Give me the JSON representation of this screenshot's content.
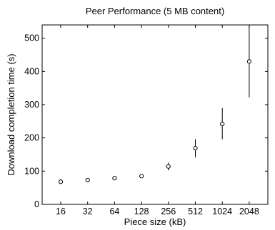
{
  "chart_data": {
    "type": "scatter",
    "title": "Peer Performance (5 MB content)",
    "xlabel": "Piece size (kB)",
    "ylabel": "Download completion time (s)",
    "x_scale": "log2",
    "x_categories": [
      "16",
      "32",
      "64",
      "128",
      "256",
      "512",
      "1024",
      "2048"
    ],
    "ylim": [
      0,
      540
    ],
    "yticks": [
      0,
      100,
      200,
      300,
      400,
      500
    ],
    "grid": false,
    "legend": "none",
    "marker": "open-circle",
    "color": "#000000",
    "series": [
      {
        "points": [
          {
            "x": "16",
            "y": 68,
            "err_low": 61,
            "err_high": 76
          },
          {
            "x": "32",
            "y": 73,
            "err_low": 69,
            "err_high": 78
          },
          {
            "x": "64",
            "y": 79,
            "err_low": 74,
            "err_high": 85
          },
          {
            "x": "128",
            "y": 85,
            "err_low": 80,
            "err_high": 90
          },
          {
            "x": "256",
            "y": 114,
            "err_low": 102,
            "err_high": 126
          },
          {
            "x": "512",
            "y": 169,
            "err_low": 142,
            "err_high": 196
          },
          {
            "x": "1024",
            "y": 242,
            "err_low": 196,
            "err_high": 290
          },
          {
            "x": "2048",
            "y": 430,
            "err_low": 322,
            "err_high": 540
          }
        ]
      }
    ]
  }
}
